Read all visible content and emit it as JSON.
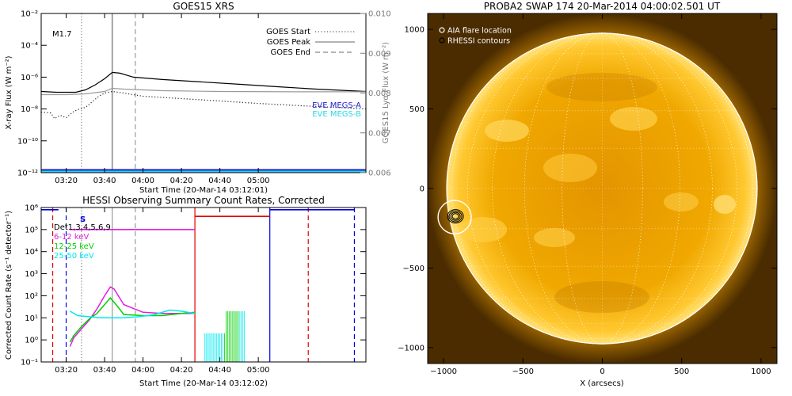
{
  "chart_data": [
    {
      "type": "line",
      "title": "GOES15 XRS",
      "xlabel": "Start Time (20-Mar-14 03:12:01)",
      "ylabel": "X-ray Flux (W m⁻²)",
      "y2label": "GOES15 Lyα Flux (W m⁻²)",
      "annotation": "M1.7",
      "x_ticks": [
        "03:20",
        "03:40",
        "04:00",
        "04:20",
        "04:40",
        "05:00"
      ],
      "y_ticks": [
        "10⁻¹²",
        "10⁻¹⁰",
        "10⁻⁸",
        "10⁻⁶",
        "10⁻⁴",
        "10⁻²"
      ],
      "y2_ticks": [
        "0.006",
        "0.007",
        "0.008",
        "0.009",
        "0.010"
      ],
      "ylim_log10": [
        -12,
        -2
      ],
      "y2lim": [
        0.006,
        0.01
      ],
      "xlim_min": [
        7,
        176
      ],
      "yscale": "log",
      "legend": [
        {
          "label": "GOES Start",
          "style": "dotted",
          "color": "#7a7a7a"
        },
        {
          "label": "GOES Peak",
          "style": "solid",
          "color": "#9a9a9a"
        },
        {
          "label": "GOES End",
          "style": "dashed",
          "color": "#9a9a9a"
        }
      ],
      "legend2": [
        {
          "label": "EVE MEGS-A",
          "color": "#1f1fd0"
        },
        {
          "label": "EVE MEGS-B",
          "color": "#28d8e8"
        }
      ],
      "markers_min": {
        "start": 28,
        "peak": 44,
        "end": 56
      },
      "series": [
        {
          "color": "#000000",
          "x": [
            7,
            15,
            25,
            30,
            35,
            40,
            44,
            48,
            55,
            70,
            90,
            110,
            130,
            150,
            176
          ],
          "log10y": [
            -6.9,
            -6.95,
            -6.95,
            -6.8,
            -6.5,
            -6.1,
            -5.7,
            -5.75,
            -6.0,
            -6.15,
            -6.3,
            -6.45,
            -6.6,
            -6.75,
            -6.9
          ]
        },
        {
          "color": "#9a9a9a",
          "x": [
            7,
            20,
            30,
            40,
            44,
            50,
            70,
            100,
            140,
            176
          ],
          "log10y": [
            -7.1,
            -7.1,
            -7.05,
            -6.9,
            -6.7,
            -6.75,
            -6.85,
            -6.9,
            -6.92,
            -6.92
          ]
        },
        {
          "color": "#222222",
          "style": "dotted",
          "x": [
            7,
            12,
            14,
            17,
            20,
            24,
            27,
            30,
            33,
            37,
            40,
            44,
            50,
            60,
            80,
            100,
            120,
            140,
            160,
            176
          ],
          "log10y": [
            -8.2,
            -8.25,
            -8.6,
            -8.4,
            -8.55,
            -8.15,
            -8.0,
            -7.9,
            -7.6,
            -7.2,
            -7.0,
            -6.9,
            -7.0,
            -7.2,
            -7.35,
            -7.5,
            -7.65,
            -7.78,
            -7.9,
            -8.0
          ]
        },
        {
          "color": "#1f1fd0",
          "x": [
            7,
            176
          ],
          "log10y": [
            -11.85,
            -11.85
          ]
        },
        {
          "color": "#28d8e8",
          "x": [
            7,
            176
          ],
          "log10y": [
            -11.95,
            -11.95
          ]
        }
      ]
    },
    {
      "type": "line",
      "title": "HESSI Observing Summary Count Rates, Corrected",
      "xlabel": "Start Time (20-Mar-14 03:12:02)",
      "ylabel": "Corrected Count Rate (s⁻¹ detector⁻¹)",
      "x_ticks": [
        "03:20",
        "03:40",
        "04:00",
        "04:20",
        "04:40",
        "05:00"
      ],
      "y_ticks": [
        "10⁻¹",
        "10⁰",
        "10¹",
        "10²",
        "10³",
        "10⁴",
        "10⁵",
        "10⁶"
      ],
      "ylim_log10": [
        -1,
        6
      ],
      "xlim_min": [
        7,
        176
      ],
      "yscale": "log",
      "legend": [
        {
          "label": "Det1,3,4,5,6,9",
          "color": "#000000"
        },
        {
          "label": "6-12 keV",
          "color": "#e020e0"
        },
        {
          "label": "12-25 keV",
          "color": "#00d000"
        },
        {
          "label": "25-50 keV",
          "color": "#00e8f0"
        }
      ],
      "annotation": "S",
      "series": [
        {
          "color": "#e020e0",
          "x": [
            22,
            24,
            28,
            32,
            36,
            40,
            43,
            45,
            50,
            60,
            70,
            80,
            87
          ],
          "log10y": [
            -0.3,
            0.1,
            0.5,
            0.9,
            1.4,
            2.0,
            2.4,
            2.3,
            1.6,
            1.25,
            1.2,
            1.2,
            1.2
          ]
        },
        {
          "color": "#00d000",
          "x": [
            22,
            24,
            28,
            32,
            36,
            40,
            43,
            46,
            50,
            60,
            70,
            80,
            87
          ],
          "log10y": [
            -0.1,
            0.2,
            0.6,
            0.95,
            1.2,
            1.6,
            1.9,
            1.6,
            1.15,
            1.1,
            1.1,
            1.2,
            1.25
          ]
        },
        {
          "color": "#00e8f0",
          "x": [
            22,
            26,
            32,
            38,
            44,
            50,
            58,
            66,
            74,
            80,
            87
          ],
          "log10y": [
            1.3,
            1.1,
            1.05,
            1.0,
            1.0,
            1.0,
            1.05,
            1.15,
            1.35,
            1.3,
            1.2
          ]
        }
      ],
      "segments": [
        {
          "color": "#0000e0",
          "x": [
            0,
            16
          ],
          "log10y": 5.9
        },
        {
          "color": "#e020e0",
          "x": [
            22,
            87
          ],
          "log10y": 5.0
        },
        {
          "color": "#e00000",
          "x": [
            87,
            126
          ],
          "log10y": 5.6
        },
        {
          "color": "#0000e0",
          "x": [
            126,
            170
          ],
          "log10y": 5.9
        }
      ],
      "vlines": [
        {
          "color": "#e00000",
          "x": 13,
          "style": "dashed"
        },
        {
          "color": "#0000e0",
          "x": 20,
          "style": "dashed"
        },
        {
          "color": "#7a7a7a",
          "x": 28,
          "style": "dotted"
        },
        {
          "color": "#9a9a9a",
          "x": 44,
          "style": "solid"
        },
        {
          "color": "#9a9a9a",
          "x": 56,
          "style": "dashed"
        },
        {
          "color": "#e00000",
          "x": 87,
          "style": "solid"
        },
        {
          "color": "#0000e0",
          "x": 126,
          "style": "solid"
        },
        {
          "color": "#e00000",
          "x": 146,
          "style": "dashed"
        },
        {
          "color": "#0000e0",
          "x": 170,
          "style": "dashed"
        }
      ]
    },
    {
      "type": "image",
      "title": "PROBA2 SWAP 174 20-Mar-2014 04:00:02.501 UT",
      "xlabel": "X (arcsecs)",
      "x_ticks": [
        "−1000",
        "−500",
        "0",
        "500",
        "1000"
      ],
      "y_ticks": [
        "−1000",
        "−500",
        "0",
        "500",
        "1000"
      ],
      "xlim": [
        -1100,
        1100
      ],
      "ylim": [
        -1100,
        1100
      ],
      "legend": [
        {
          "label": "AIA flare location",
          "color": "#ffffff"
        },
        {
          "label": "RHESSI contours",
          "color": "#000000"
        }
      ],
      "flare_location_arcsec": [
        -930,
        -180
      ],
      "solar_radius_arcsec": 980
    }
  ]
}
